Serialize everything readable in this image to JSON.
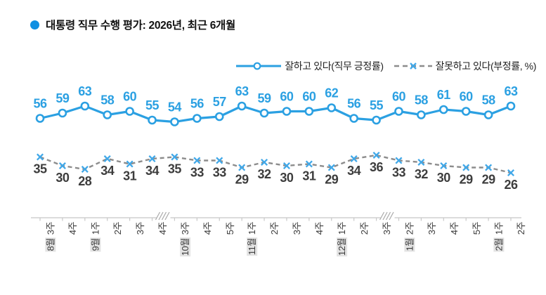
{
  "title": {
    "text": "대통령 직무 수행 평가: 2026년, 최근 6개월"
  },
  "legend": {
    "positive_label": "잘하고 있다(직무 긍정률)",
    "negative_label": "잘못하고 있다(부정률, %)"
  },
  "colors": {
    "positive": "#2ba0e2",
    "positive_marker_fill": "#ffffff",
    "negative_line": "#8c8c8c",
    "negative_marker": "#41a8e8",
    "negative_value_text": "#3d3d3d",
    "axis": "#c8c8c8",
    "axis_break": "#a9a9a9",
    "tick_label": "#3a3a3a",
    "title_bullet": "#0f8fe2",
    "month_highlight_bg": "#e3e3e3"
  },
  "chart_data": {
    "type": "line",
    "title": "대통령 직무 수행 평가: 2026년, 최근 6개월",
    "categories": [
      "8월 3주",
      "4주",
      "9월 1주",
      "2주",
      "3주",
      "4주",
      "10월 3주",
      "4주",
      "5주",
      "11월 1주",
      "2주",
      "3주",
      "4주",
      "12월 1주",
      "2주",
      "3주",
      "1월 2주",
      "3주",
      "4주",
      "5주",
      "2월 1주",
      "2주"
    ],
    "series": [
      {
        "name": "잘하고 있다(직무 긍정률)",
        "style": "solid-circle",
        "values": [
          56,
          59,
          63,
          58,
          60,
          55,
          54,
          56,
          57,
          63,
          59,
          60,
          60,
          62,
          56,
          55,
          60,
          58,
          61,
          60,
          58,
          63
        ]
      },
      {
        "name": "잘못하고 있다(부정률, %)",
        "style": "dashed-x",
        "values": [
          35,
          30,
          28,
          34,
          31,
          34,
          35,
          33,
          33,
          29,
          32,
          30,
          31,
          29,
          34,
          36,
          33,
          32,
          30,
          29,
          29,
          26
        ]
      }
    ],
    "axis_breaks_after_index": [
      5,
      15
    ],
    "unit": "%",
    "ylim": [
      20,
      70
    ],
    "grid": false,
    "legend_position": "top-right",
    "value_labels": "all"
  }
}
